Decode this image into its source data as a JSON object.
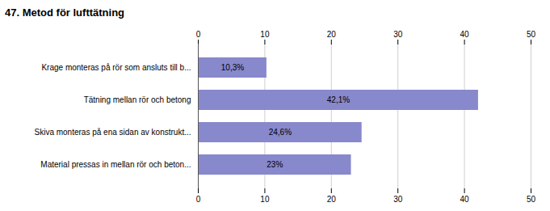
{
  "chart_data": {
    "type": "bar",
    "title": "47. Metod för lufttätning",
    "orientation": "horizontal",
    "categories": [
      "Krage monteras på rör som ansluts till b...",
      "Tätning mellan rör och betong",
      "Skiva monteras på ena sidan av konstrukt...",
      "Material pressas in mellan rör och beton..."
    ],
    "values": [
      10.3,
      42.1,
      24.6,
      23.0
    ],
    "value_labels": [
      "10,3%",
      "42,1%",
      "24,6%",
      "23%"
    ],
    "data_labels": true,
    "color": "#8888cc",
    "xlim": [
      0,
      50
    ],
    "xticks": [
      0,
      10,
      20,
      30,
      40,
      50
    ],
    "grid": true
  }
}
